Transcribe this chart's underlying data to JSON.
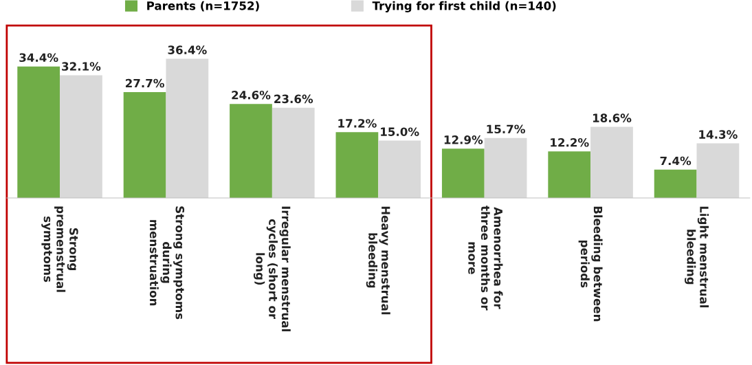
{
  "chart_data": {
    "type": "bar",
    "categories": [
      "Strong\npremenstrual\nsymptoms",
      "Strong symptoms\nduring\nmenstruation",
      "Irregular menstrual\ncycles (short or\nlong)",
      "Heavy menstrual\nbleeding",
      "Amenorrhea for\nthree months or\nmore",
      "Bleeding between\nperiods",
      "Light menstrual\nbleeding"
    ],
    "series": [
      {
        "name": "Parents (n=1752)",
        "color": "#70ad47",
        "values": [
          34.4,
          27.7,
          24.6,
          17.2,
          12.9,
          12.2,
          7.4
        ],
        "value_labels": [
          "34.4%",
          "27.7%",
          "24.6%",
          "17.2%",
          "12.9%",
          "12.2%",
          "7.4%"
        ]
      },
      {
        "name": "Trying for first child (n=140)",
        "color": "#d9d9d9",
        "values": [
          32.1,
          36.4,
          23.6,
          15.0,
          15.7,
          18.6,
          14.3
        ],
        "value_labels": [
          "32.1%",
          "36.4%",
          "23.6%",
          "15.0%",
          "15.7%",
          "18.6%",
          "14.3%"
        ]
      }
    ],
    "legend": "top",
    "grid": false
  }
}
